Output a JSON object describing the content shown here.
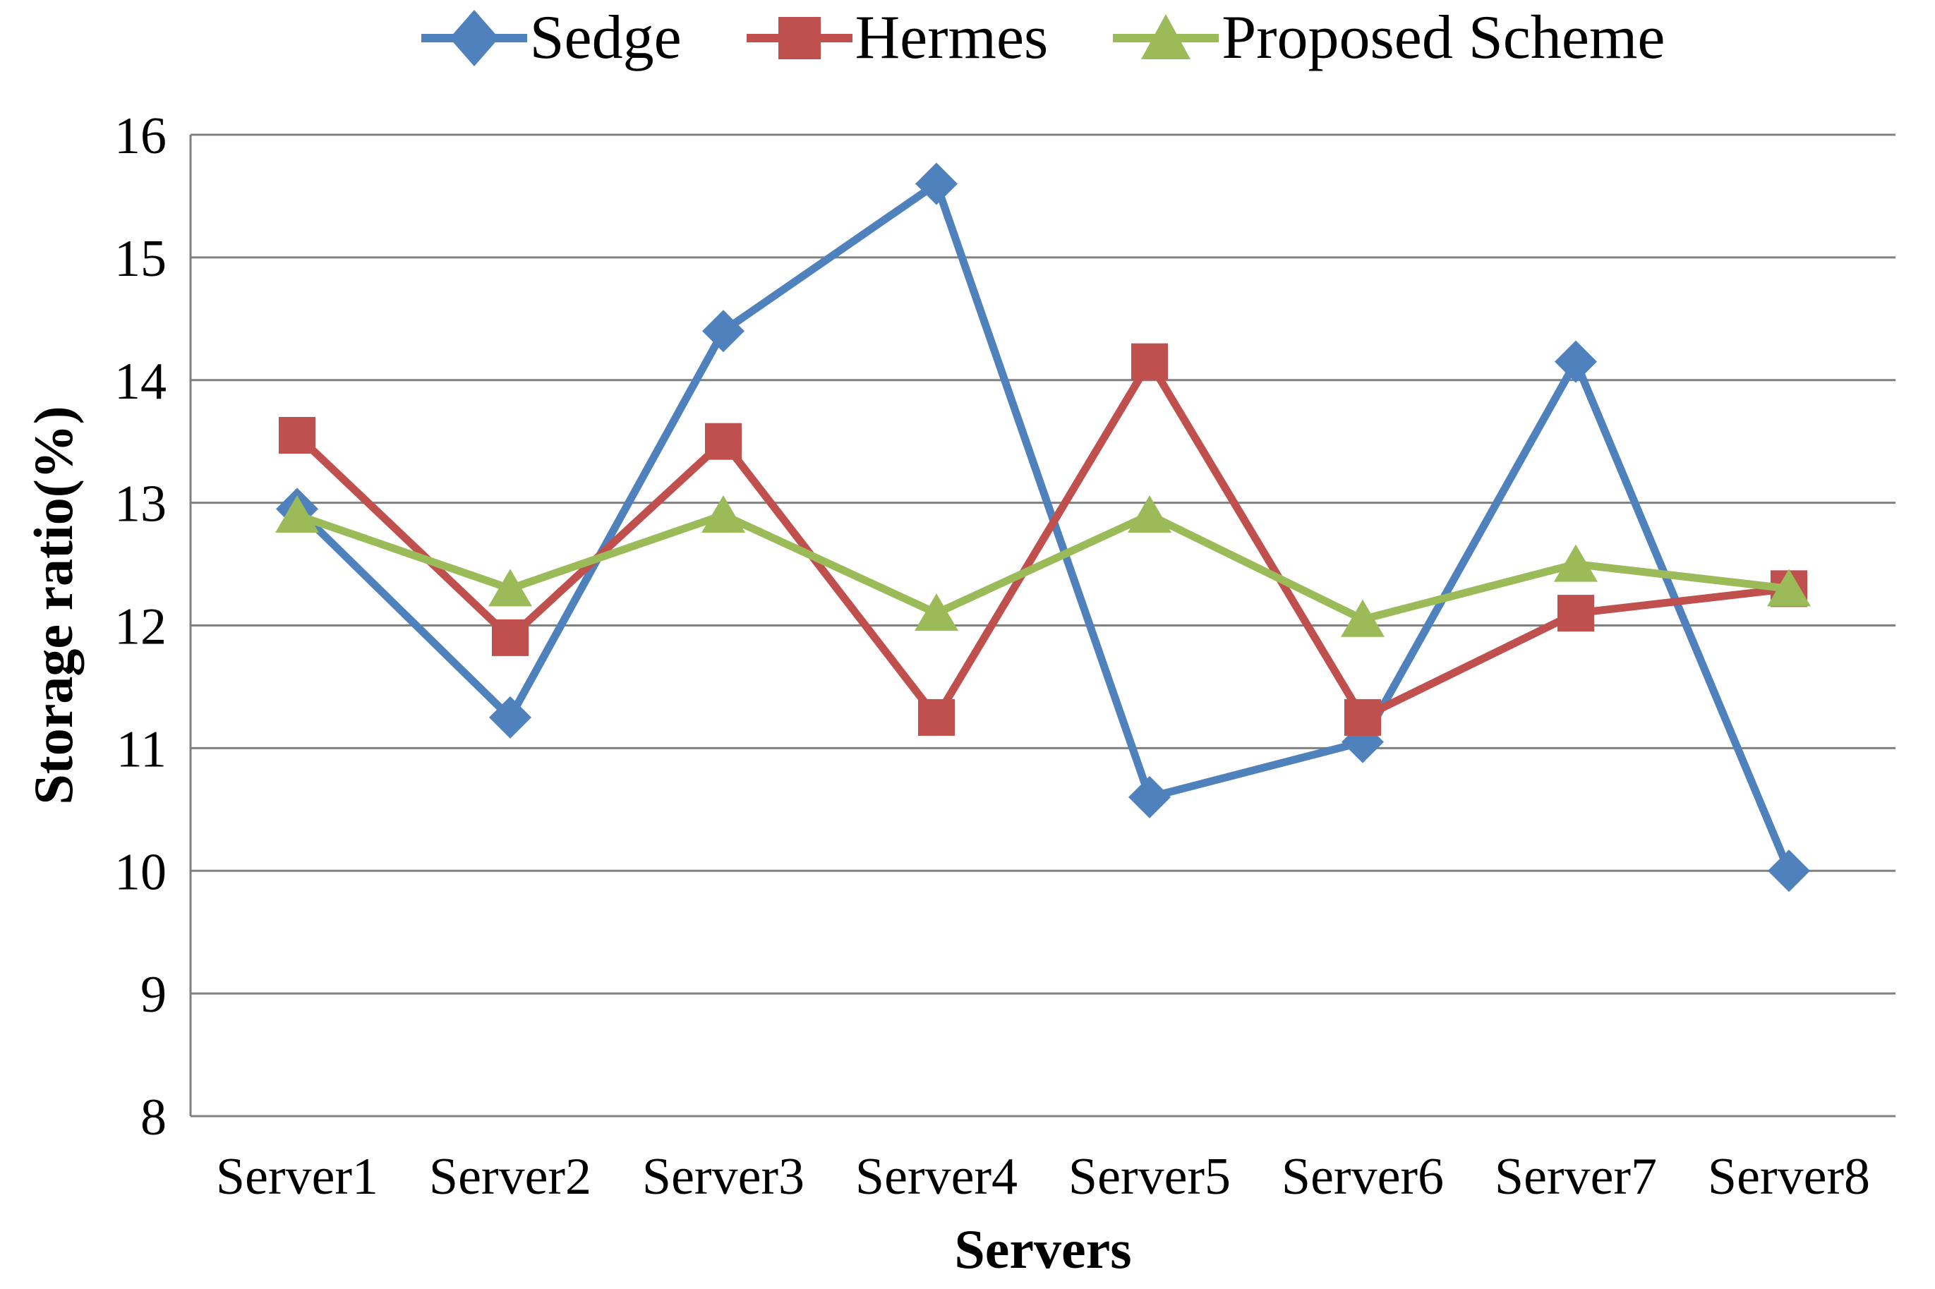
{
  "chart_data": {
    "type": "line",
    "title": "",
    "xlabel": "Servers",
    "ylabel": "Storage ratio(%)",
    "categories": [
      "Server1",
      "Server2",
      "Server3",
      "Server4",
      "Server5",
      "Server6",
      "Server7",
      "Server8"
    ],
    "series": [
      {
        "name": "Sedge",
        "marker": "diamond",
        "color": "#4F81BD",
        "values": [
          12.95,
          11.25,
          14.4,
          15.6,
          10.6,
          11.05,
          14.15,
          10.0
        ]
      },
      {
        "name": "Hermes",
        "marker": "square",
        "color": "#C0504D",
        "values": [
          13.55,
          11.9,
          13.5,
          11.25,
          14.15,
          11.25,
          12.1,
          12.3
        ]
      },
      {
        "name": "Proposed Scheme",
        "marker": "triangle",
        "color": "#9BBB59",
        "values": [
          12.9,
          12.3,
          12.9,
          12.1,
          12.9,
          12.05,
          12.5,
          12.3
        ]
      }
    ],
    "ylim": [
      8,
      16
    ],
    "y_ticks": [
      8,
      9,
      10,
      11,
      12,
      13,
      14,
      15,
      16
    ],
    "grid": true,
    "legend_position": "top",
    "gridline_color": "#808080",
    "axis_color": "#808080",
    "text_color": "#000000"
  }
}
